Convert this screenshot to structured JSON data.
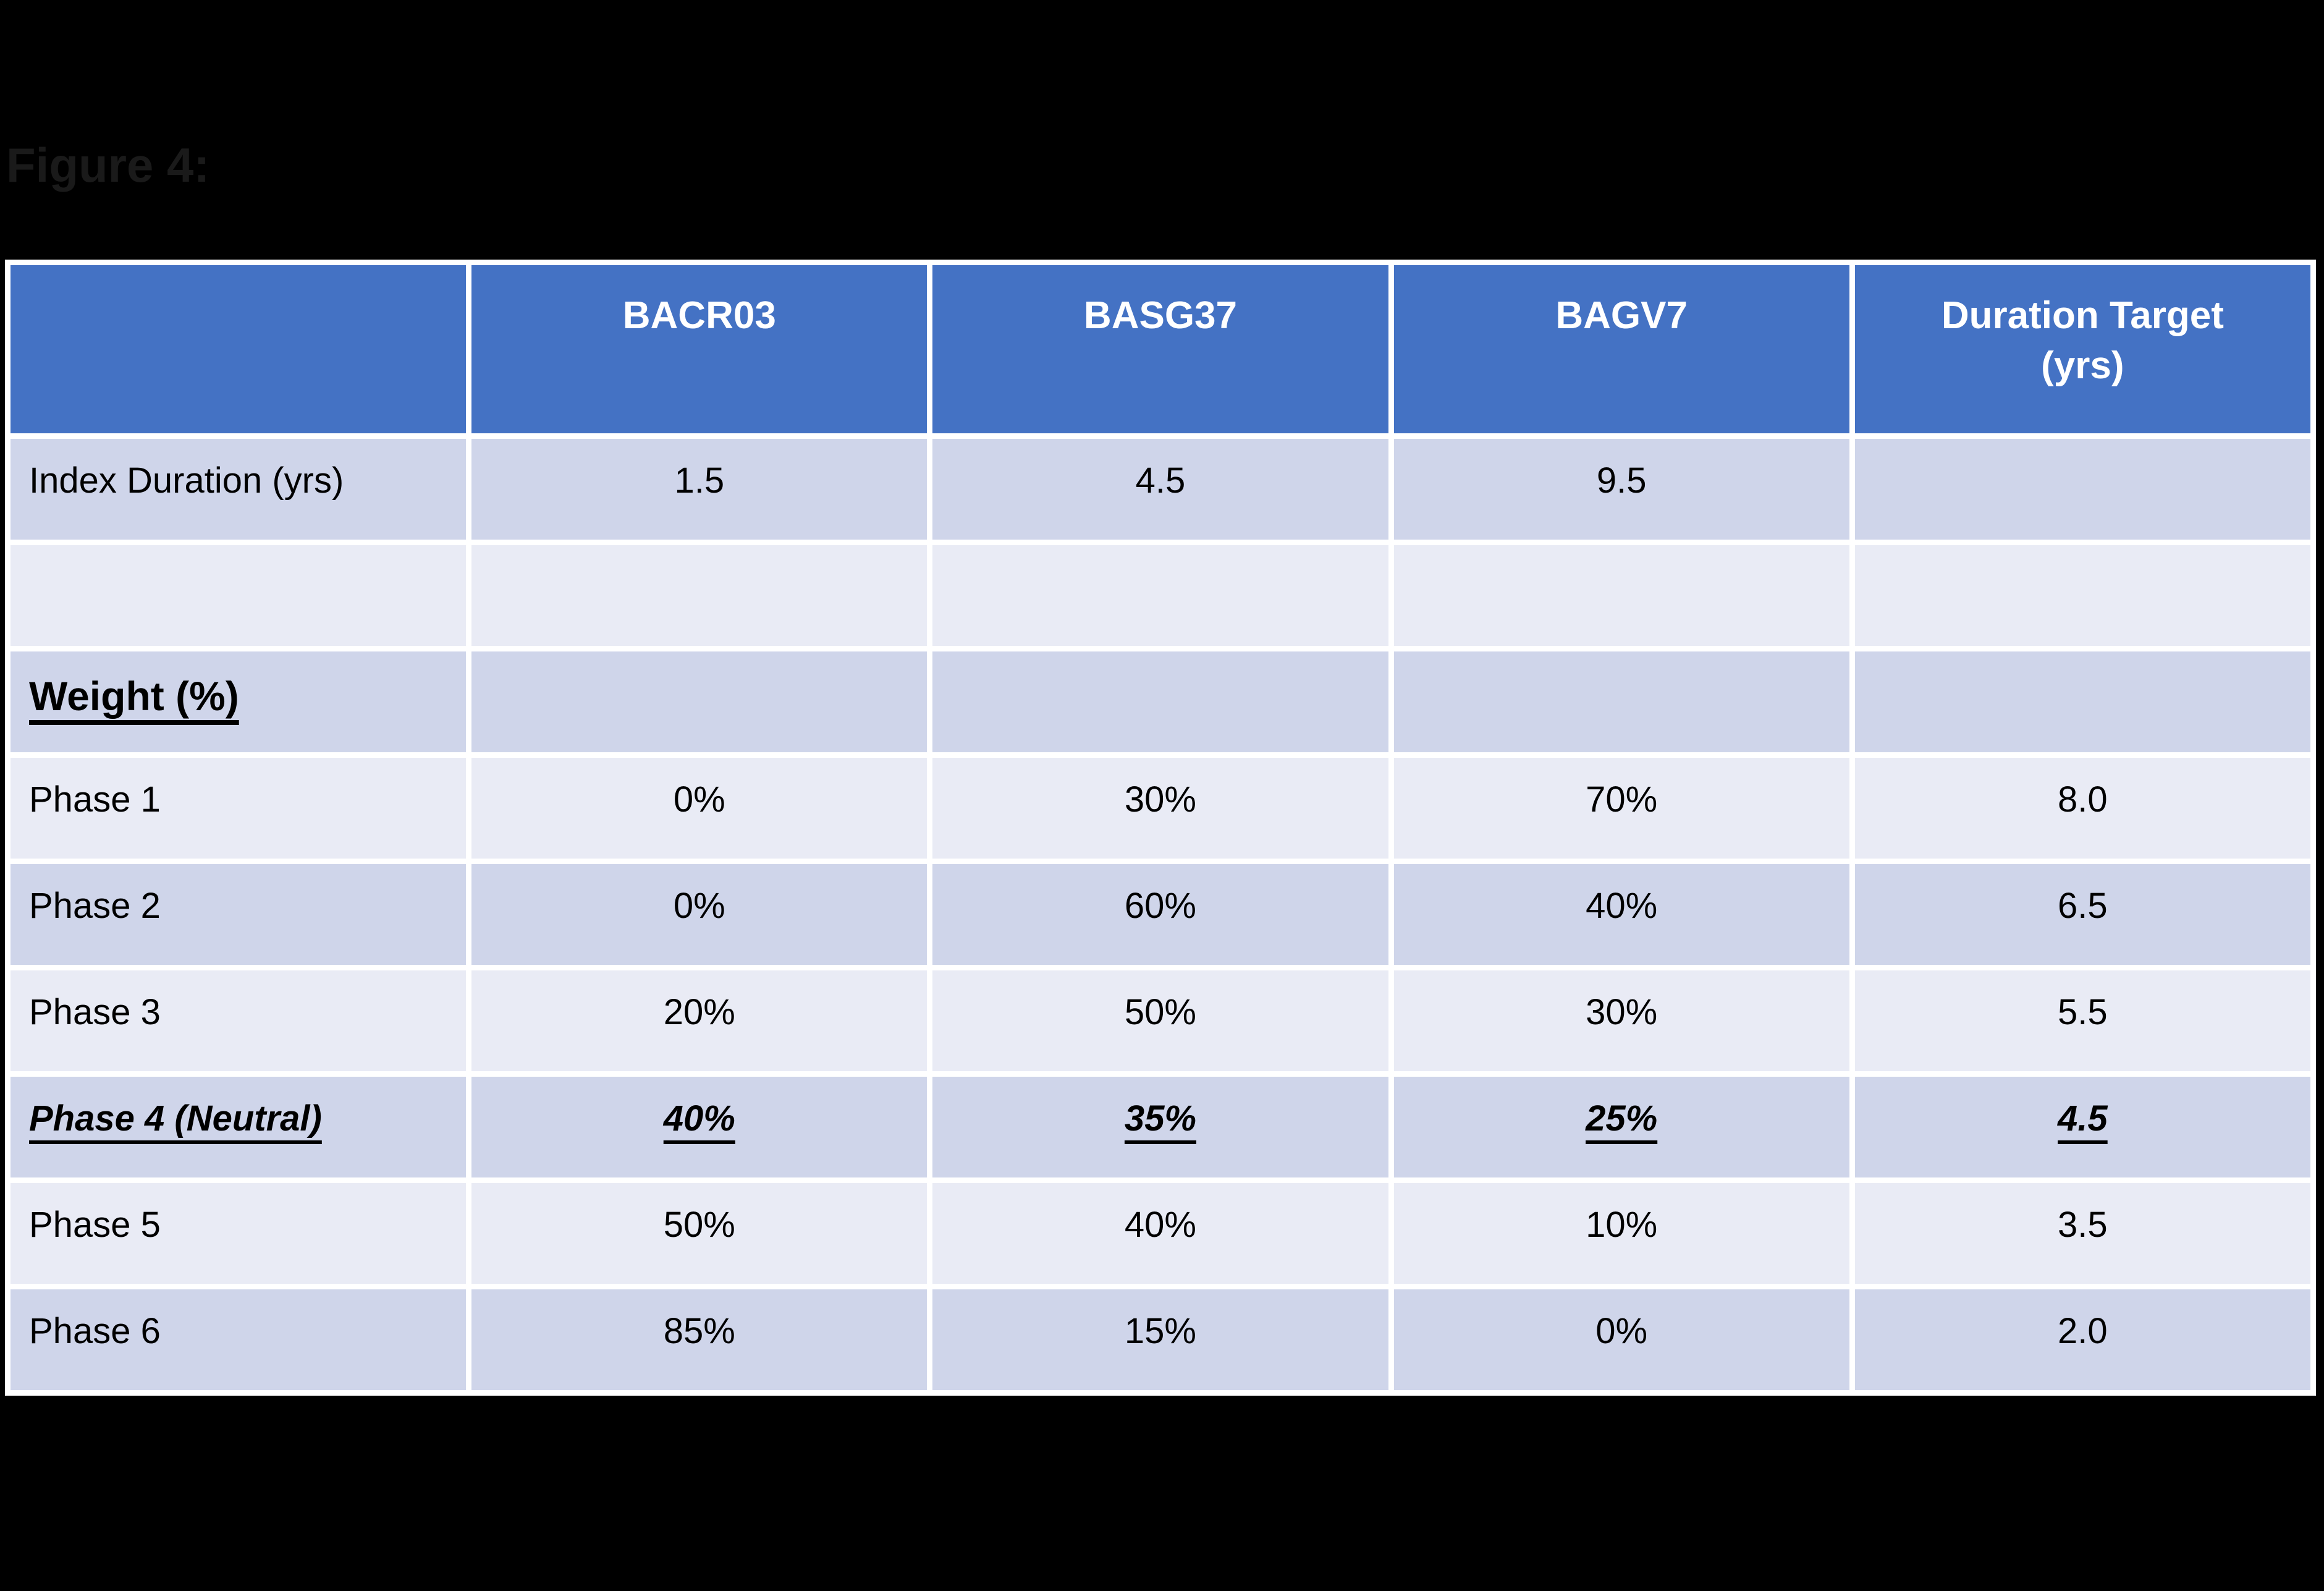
{
  "page": {
    "background": "#000000"
  },
  "figure_title": "Figure 4:",
  "table": {
    "columns": [
      "",
      "BACR03",
      "BASG37",
      "BAGV7",
      "Duration Target (yrs)"
    ],
    "rows": [
      {
        "label": "Index Duration (yrs)",
        "values": [
          "1.5",
          "4.5",
          "9.5",
          ""
        ]
      },
      {
        "label": "",
        "values": [
          "",
          "",
          "",
          ""
        ]
      },
      {
        "label": "Weight (%)",
        "values": [
          "",
          "",
          "",
          ""
        ]
      },
      {
        "label": "Phase 1",
        "values": [
          "0%",
          "30%",
          "70%",
          "8.0"
        ]
      },
      {
        "label": "Phase 2",
        "values": [
          "0%",
          "60%",
          "40%",
          "6.5"
        ]
      },
      {
        "label": "Phase 3",
        "values": [
          "20%",
          "50%",
          "30%",
          "5.5"
        ]
      },
      {
        "label": "Phase 4 (Neutral)",
        "values": [
          "40%",
          "35%",
          "25%",
          "4.5"
        ]
      },
      {
        "label": "Phase 5",
        "values": [
          "50%",
          "40%",
          "10%",
          "3.5"
        ]
      },
      {
        "label": "Phase 6",
        "values": [
          "85%",
          "15%",
          "0%",
          "2.0"
        ]
      }
    ],
    "colors": {
      "header_bg": "#4472C4",
      "header_text": "#FFFFFF",
      "band_dark": "#CFD5EA",
      "band_light": "#E9EBF5",
      "grid": "#FFFFFF",
      "body_text": "#000000"
    }
  }
}
